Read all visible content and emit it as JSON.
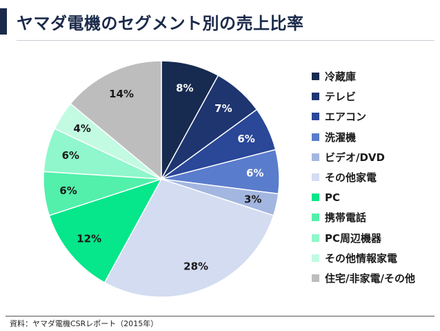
{
  "title": "ヤマダ電機のセグメント別の売上比率",
  "source": "資料：ヤマダ電機CSRレポート（2015年）",
  "chart_data": {
    "type": "pie",
    "title": "ヤマダ電機のセグメント別の売上比率",
    "unit": "%",
    "start": "12 o'clock",
    "direction": "clockwise",
    "legend_position": "right",
    "slices": [
      {
        "label": "冷蔵庫",
        "value": 8,
        "display": "8%",
        "color": "#172a50",
        "text_color": "#ffffff"
      },
      {
        "label": "テレビ",
        "value": 7,
        "display": "7%",
        "color": "#1e3570",
        "text_color": "#ffffff"
      },
      {
        "label": "エアコン",
        "value": 6,
        "display": "6%",
        "color": "#2a4798",
        "text_color": "#ffffff"
      },
      {
        "label": "洗濯機",
        "value": 6,
        "display": "6%",
        "color": "#5a7ccc",
        "text_color": "#ffffff"
      },
      {
        "label": "ビデオ/DVD",
        "value": 3,
        "display": "3%",
        "color": "#a3b6e0",
        "text_color": "#1a1a1a"
      },
      {
        "label": "その他家電",
        "value": 28,
        "display": "28%",
        "color": "#d3dcf1",
        "text_color": "#1a1a1a"
      },
      {
        "label": "PC",
        "value": 12,
        "display": "12%",
        "color": "#06e68a",
        "text_color": "#1a1a1a"
      },
      {
        "label": "携帯電話",
        "value": 6,
        "display": "6%",
        "color": "#52f0ab",
        "text_color": "#1a1a1a"
      },
      {
        "label": "PC周辺機器",
        "value": 6,
        "display": "6%",
        "color": "#8ff7cb",
        "text_color": "#1a1a1a"
      },
      {
        "label": "その他情報家電",
        "value": 4,
        "display": "4%",
        "color": "#c2fbe2",
        "text_color": "#1a1a1a"
      },
      {
        "label": "住宅/非家電/その他",
        "value": 14,
        "display": "14%",
        "color": "#bdbdbd",
        "text_color": "#1a1a1a"
      }
    ]
  }
}
